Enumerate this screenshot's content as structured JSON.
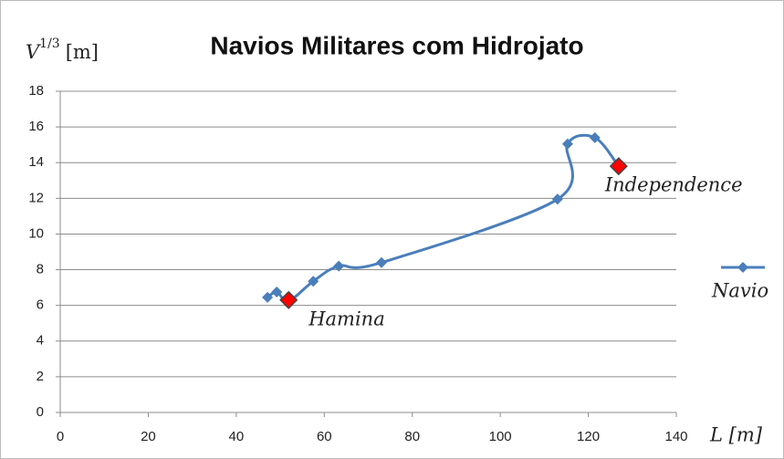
{
  "chart_data": {
    "type": "scatter",
    "title": "Navios Militares com Hidrojato",
    "ylabel": {
      "base": "V",
      "exponent": "1/3",
      "unit": "[m]"
    },
    "xlabel": "L [m]",
    "series": [
      {
        "name": "Navio",
        "color": "#4a7ebb",
        "x": [
          47.1,
          49.2,
          51.9,
          57.5,
          63.3,
          73.0,
          113.0,
          115.3,
          121.5,
          126.9
        ],
        "values": [
          6.45,
          6.75,
          6.25,
          7.35,
          8.2,
          8.4,
          11.95,
          15.05,
          15.4,
          13.8
        ]
      }
    ],
    "highlights": [
      {
        "label": "Hamina",
        "x": 51.9,
        "y": 6.3,
        "color": "#ff0000"
      },
      {
        "label": "Independence",
        "x": 126.9,
        "y": 13.8,
        "color": "#ff0000"
      }
    ],
    "xlim": [
      0,
      140
    ],
    "xticks": [
      0,
      20,
      40,
      60,
      80,
      100,
      120,
      140
    ],
    "ylim": [
      0,
      18
    ],
    "yticks": [
      0,
      2,
      4,
      6,
      8,
      10,
      12,
      14,
      16,
      18
    ],
    "grid": true,
    "smooth": true,
    "legend": "right"
  }
}
